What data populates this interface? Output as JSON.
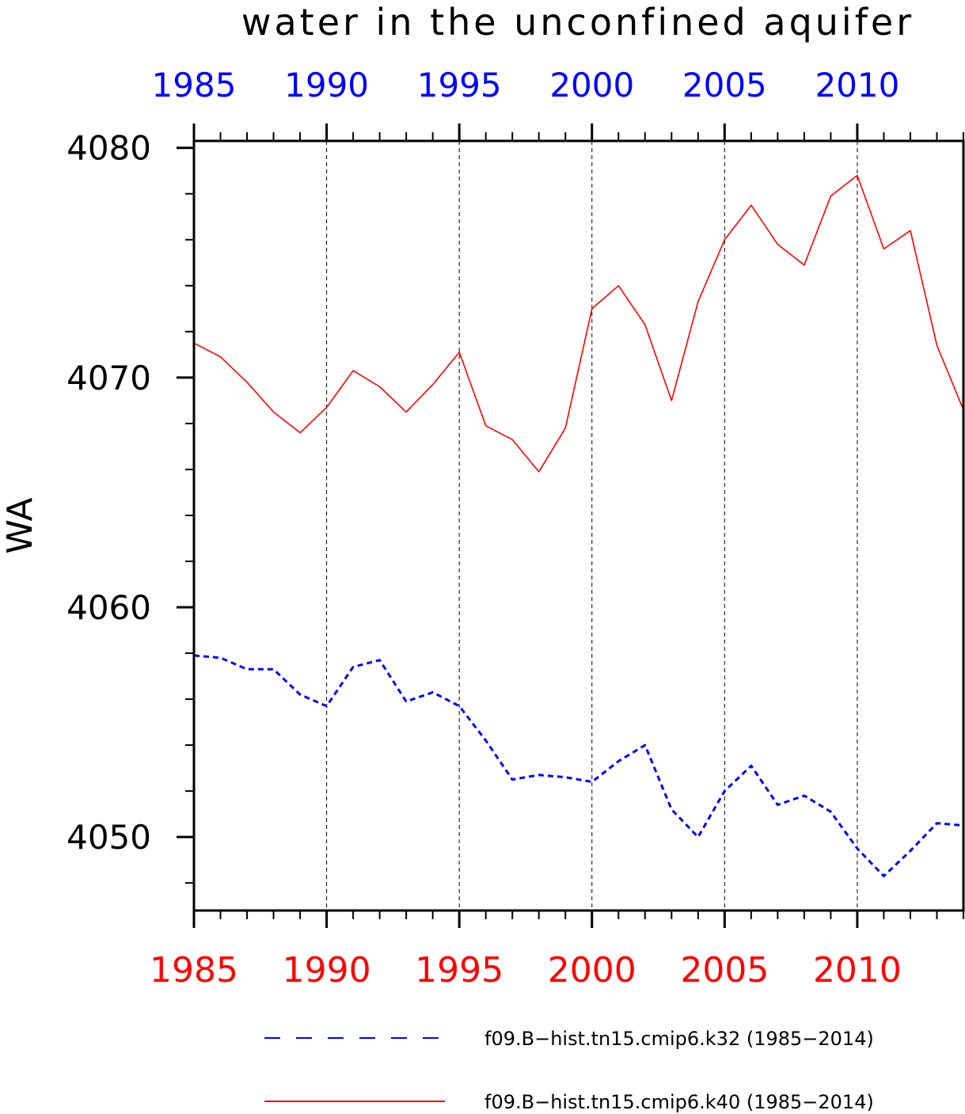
{
  "chart_data": {
    "type": "line",
    "title": "water in the unconfined aquifer",
    "xlabel": "",
    "ylabel": "WA",
    "xlim": [
      1985,
      2014
    ],
    "ylim": [
      4046.8,
      4080.3
    ],
    "x_ticks": [
      "1985",
      "1990",
      "1995",
      "2000",
      "2005",
      "2010"
    ],
    "y_ticks": [
      "4050",
      "4060",
      "4070",
      "4080"
    ],
    "grid": "vertical dashed at major x ticks",
    "legend_position": "bottom",
    "x": [
      1985,
      1986,
      1987,
      1988,
      1989,
      1990,
      1991,
      1992,
      1993,
      1994,
      1995,
      1996,
      1997,
      1998,
      1999,
      2000,
      2001,
      2002,
      2003,
      2004,
      2005,
      2006,
      2007,
      2008,
      2009,
      2010,
      2011,
      2012,
      2013,
      2014
    ],
    "series": [
      {
        "name": "f09.B−hist.tn15.cmip6.k32 (1985−2014)",
        "color": "#0000ff",
        "style": "dashed",
        "values": [
          4057.9,
          4057.8,
          4057.3,
          4057.3,
          4056.2,
          4055.7,
          4057.4,
          4057.7,
          4055.9,
          4056.3,
          4055.7,
          4054.2,
          4052.5,
          4052.7,
          4052.6,
          4052.4,
          4053.3,
          4054.0,
          4051.2,
          4050.0,
          4052.0,
          4053.1,
          4051.4,
          4051.8,
          4051.1,
          4049.5,
          4048.3,
          4049.4,
          4050.6,
          4050.5
        ]
      },
      {
        "name": "f09.B−hist.tn15.cmip6.k40 (1985−2014)",
        "color": "#ff0000",
        "style": "solid",
        "values": [
          4071.5,
          4070.9,
          4069.8,
          4068.5,
          4067.6,
          4068.7,
          4070.3,
          4069.6,
          4068.5,
          4069.7,
          4071.1,
          4067.9,
          4067.3,
          4065.9,
          4067.8,
          4073.0,
          4074.0,
          4072.3,
          4069.0,
          4073.3,
          4076.0,
          4077.5,
          4075.8,
          4074.9,
          4077.9,
          4078.8,
          4075.6,
          4076.4,
          4071.4,
          4068.6
        ]
      }
    ]
  }
}
